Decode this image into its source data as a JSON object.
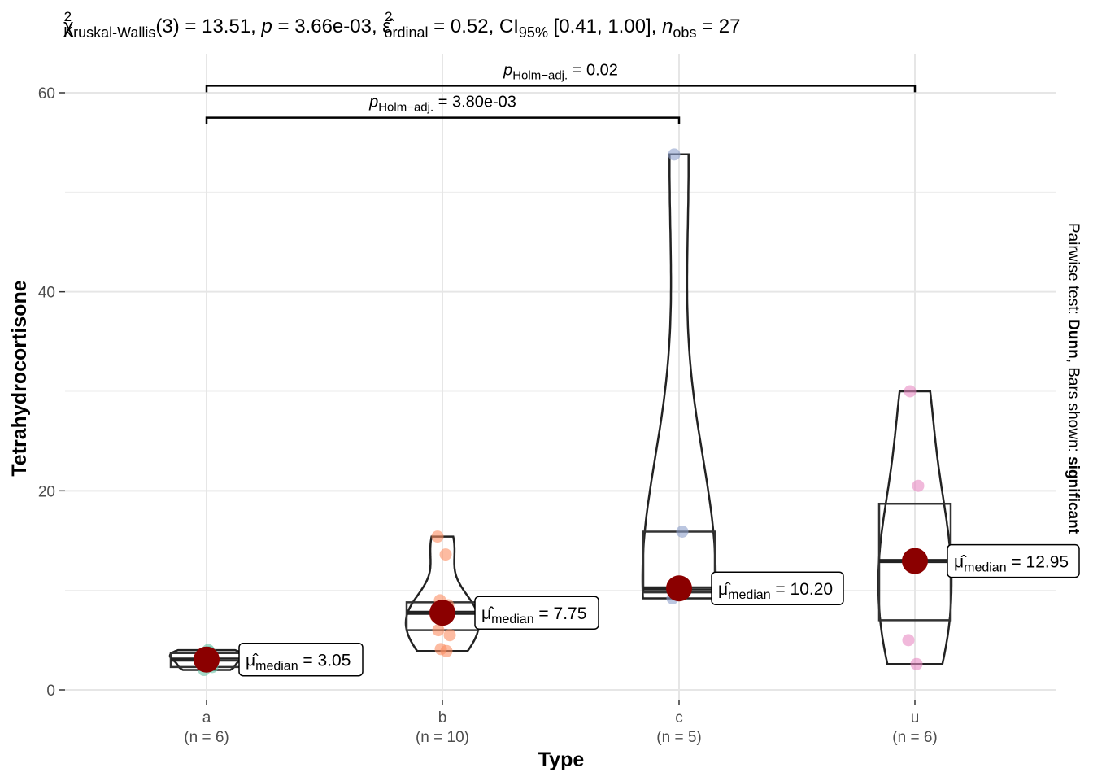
{
  "chart_data": {
    "type": "violin-box",
    "subtitle": {
      "stat_symbol": "χ",
      "stat_sup": "2",
      "stat_sub": "Kruskal-Wallis",
      "df": "(3) = 13.51, ",
      "p_symbol": "p",
      "p_value": " = 3.66e-03, ",
      "effect_symbol": "ε̂",
      "effect_sup": "2",
      "effect_sub": "ordinal",
      "effect_value": " = 0.52, CI",
      "ci_sub": "95%",
      "ci_value": " [0.41, 1.00], ",
      "n_symbol": "n",
      "n_sub": "obs",
      "n_value": " = 27"
    },
    "xlabel": "Type",
    "ylabel": "Tetrahydrocortisone",
    "ylim": [
      -1,
      63
    ],
    "yticks": [
      0,
      20,
      40,
      60
    ],
    "caption_parts": [
      "Pairwise test: ",
      "Dunn",
      ", Bars shown: ",
      "significant"
    ],
    "groups": [
      {
        "name": "a",
        "n_label": "(n = 6)",
        "color": "#66C2A5",
        "points": [
          3.1,
          3.8,
          2.0,
          2.3,
          3.2,
          4.0
        ],
        "box": {
          "q1": 2.3,
          "median": 3.05,
          "q3": 3.7,
          "lower": 2.0,
          "upper": 4.0
        },
        "median_label": {
          "symbol": "μ̂",
          "sub": "median",
          "value": " = 3.05"
        }
      },
      {
        "name": "b",
        "n_label": "(n = 10)",
        "color": "#FC8D62",
        "points": [
          15.4,
          13.6,
          9.0,
          8.5,
          7.4,
          7.8,
          5.5,
          6.0,
          3.9,
          4.1
        ],
        "box": {
          "q1": 6.0,
          "median": 7.75,
          "q3": 8.8,
          "lower": 3.9,
          "upper": 15.4
        },
        "median_label": {
          "symbol": "μ̂",
          "sub": "median",
          "value": " = 7.75"
        }
      },
      {
        "name": "c",
        "n_label": "(n = 5)",
        "color": "#8DA0CB",
        "points": [
          53.8,
          15.9,
          10.2,
          9.8,
          9.2
        ],
        "box": {
          "q1": 9.8,
          "median": 10.2,
          "q3": 15.9,
          "lower": 9.2,
          "upper": 53.8
        },
        "median_label": {
          "symbol": "μ̂",
          "sub": "median",
          "value": " = 10.20"
        }
      },
      {
        "name": "u",
        "n_label": "(n = 6)",
        "color": "#E78AC3",
        "points": [
          30.0,
          20.5,
          13.0,
          12.9,
          5.0,
          2.6
        ],
        "box": {
          "q1": 7.0,
          "median": 12.95,
          "q3": 18.7,
          "lower": 2.6,
          "upper": 30.0
        },
        "median_label": {
          "symbol": "μ̂",
          "sub": "median",
          "value": " = 12.95"
        }
      }
    ],
    "comparisons": [
      {
        "from": "a",
        "to": "c",
        "y": 57.5,
        "label_symbol": "p",
        "label_sub": "Holm−adj.",
        "label_value": " = 3.80e-03"
      },
      {
        "from": "a",
        "to": "u",
        "y": 60.7,
        "label_symbol": "p",
        "label_sub": "Holm−adj.",
        "label_value": " = 0.02"
      }
    ],
    "grid": true,
    "median_point_color": "#8B0000"
  }
}
